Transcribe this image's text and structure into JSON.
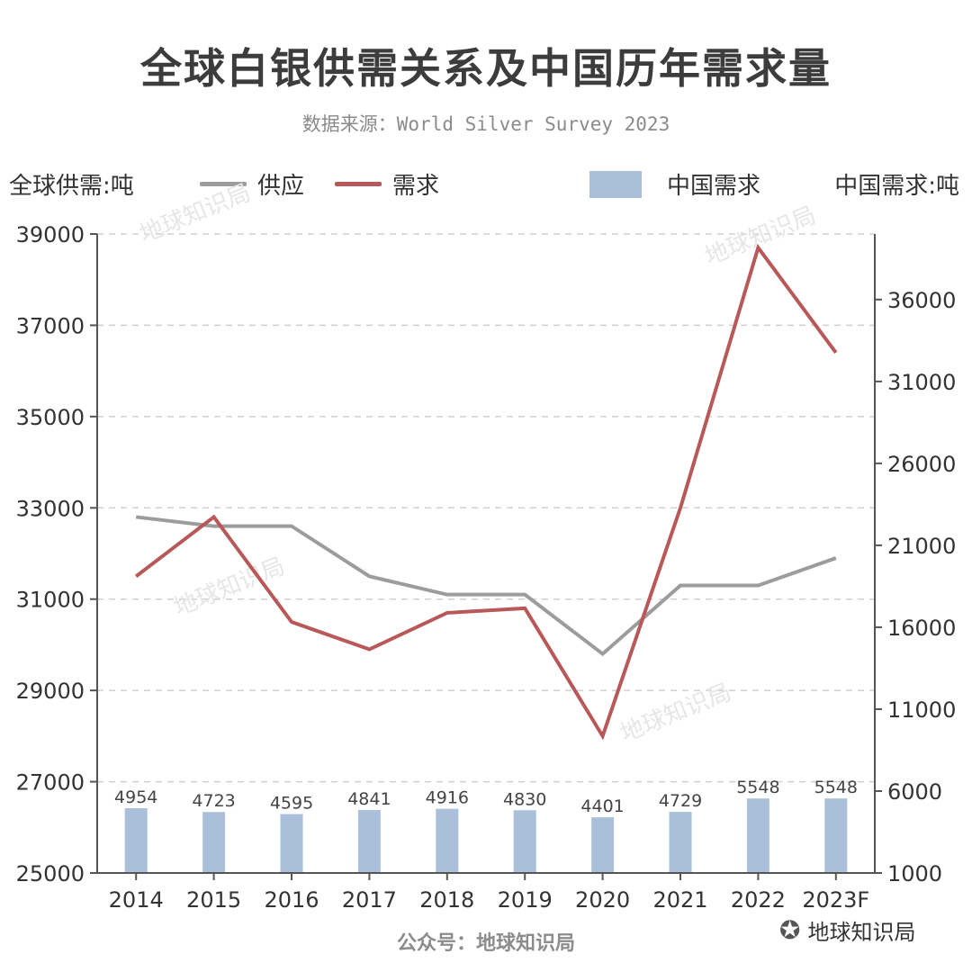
{
  "title": "全球白银供需关系及中国历年需求量",
  "subtitle": "数据来源：World Silver Survey 2023",
  "left_axis_unit": "全球供需:吨",
  "right_axis_unit": "中国需求:吨",
  "footer": "公众号：地球知识局",
  "brand_mark": "地球知识局",
  "watermark_text": "地球知识局",
  "colors": {
    "supply": "#9c9c9c",
    "demand": "#b85858",
    "china_bar": "#a9bfda",
    "axis": "#555555",
    "grid": "#d0d0d0"
  },
  "chart_data": {
    "type": "line",
    "categories": [
      "2014",
      "2015",
      "2016",
      "2017",
      "2018",
      "2019",
      "2020",
      "2021",
      "2022",
      "2023F"
    ],
    "series": [
      {
        "name": "供应",
        "type": "line",
        "axis": "left",
        "values": [
          32800,
          32600,
          32600,
          31500,
          31100,
          31100,
          29800,
          31300,
          31300,
          31900
        ]
      },
      {
        "name": "需求",
        "type": "line",
        "axis": "left",
        "values": [
          31500,
          32800,
          30500,
          29900,
          30700,
          30800,
          28000,
          33000,
          38700,
          36400
        ]
      },
      {
        "name": "中国需求",
        "type": "bar",
        "axis": "right",
        "values": [
          4954,
          4723,
          4595,
          4841,
          4916,
          4830,
          4401,
          4729,
          5548,
          5548
        ],
        "data_labels": [
          "4954",
          "4723",
          "4595",
          "4841",
          "4916",
          "4830",
          "4401",
          "4729",
          "5548",
          "5548"
        ]
      }
    ],
    "y_left": {
      "ylim": [
        25000,
        39000
      ],
      "ticks": [
        25000,
        27000,
        29000,
        31000,
        33000,
        35000,
        37000,
        39000
      ],
      "tick_labels": [
        "25000",
        "27000",
        "29000",
        "31000",
        "33000",
        "35000",
        "37000",
        "39000"
      ]
    },
    "y_right": {
      "ylim": [
        1000,
        40000
      ],
      "ticks": [
        1000,
        6000,
        11000,
        16000,
        21000,
        26000,
        31000,
        36000
      ],
      "tick_labels": [
        "1000",
        "6000",
        "11000",
        "16000",
        "21000",
        "26000",
        "31000",
        "36000"
      ]
    },
    "grid": true,
    "legend_position": "top"
  }
}
